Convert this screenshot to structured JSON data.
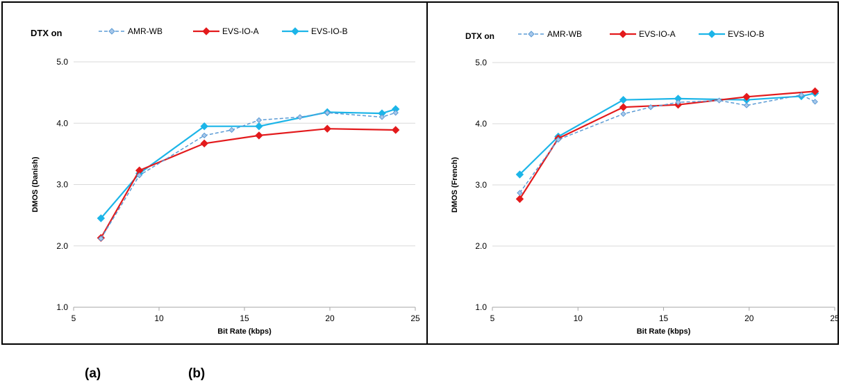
{
  "captions": {
    "a": "(a)",
    "b": "(b)"
  },
  "colors": {
    "amr_wb": "#5b9bd5",
    "evs_io_a": "#e31a1c",
    "evs_io_b": "#1cb5e8",
    "grid": "#d9d9d9",
    "axis": "#a6a6a6"
  },
  "chart_data": [
    {
      "type": "line",
      "title": "DTX on",
      "xlabel": "Bit Rate (kbps)",
      "ylabel": "DMOS (Danish)",
      "xlim": [
        5,
        25
      ],
      "ylim": [
        1.0,
        5.0
      ],
      "xticks": [
        "5",
        "10",
        "15",
        "20",
        "25"
      ],
      "yticks": [
        "1.0",
        "2.0",
        "3.0",
        "4.0",
        "5.0"
      ],
      "grid": "horizontal",
      "legend": "top",
      "series": [
        {
          "name": "AMR-WB",
          "style": "dashed",
          "x": [
            6.6,
            8.85,
            12.65,
            14.25,
            15.85,
            18.25,
            19.85,
            23.05,
            23.85
          ],
          "y": [
            2.12,
            3.15,
            3.8,
            3.89,
            4.05,
            4.1,
            4.17,
            4.1,
            4.17
          ]
        },
        {
          "name": "EVS-IO-A",
          "style": "solid",
          "x": [
            6.6,
            8.85,
            12.65,
            15.85,
            19.85,
            23.85
          ],
          "y": [
            2.13,
            3.23,
            3.67,
            3.8,
            3.91,
            3.89
          ]
        },
        {
          "name": "EVS-IO-B",
          "style": "solid",
          "x": [
            6.6,
            8.85,
            12.65,
            15.85,
            19.85,
            23.05,
            23.85
          ],
          "y": [
            2.45,
            3.18,
            3.95,
            3.95,
            4.18,
            4.16,
            4.23
          ]
        }
      ]
    },
    {
      "type": "line",
      "title": "DTX on",
      "xlabel": "Bit Rate (kbps)",
      "ylabel": "DMOS (French)",
      "xlim": [
        5,
        25
      ],
      "ylim": [
        1.0,
        5.0
      ],
      "xticks": [
        "5",
        "10",
        "15",
        "20",
        "25"
      ],
      "yticks": [
        "1.0",
        "2.0",
        "3.0",
        "4.0",
        "5.0"
      ],
      "grid": "horizontal",
      "legend": "top",
      "series": [
        {
          "name": "AMR-WB",
          "style": "dashed",
          "x": [
            6.6,
            8.85,
            12.65,
            14.25,
            15.85,
            18.25,
            19.85,
            23.05,
            23.85
          ],
          "y": [
            2.87,
            3.74,
            4.16,
            4.27,
            4.35,
            4.38,
            4.3,
            4.47,
            4.36
          ]
        },
        {
          "name": "EVS-IO-A",
          "style": "solid",
          "x": [
            6.6,
            8.85,
            12.65,
            15.85,
            19.85,
            23.85
          ],
          "y": [
            2.77,
            3.76,
            4.27,
            4.31,
            4.44,
            4.53
          ]
        },
        {
          "name": "EVS-IO-B",
          "style": "solid",
          "x": [
            6.6,
            8.85,
            12.65,
            15.85,
            19.85,
            23.05,
            23.85
          ],
          "y": [
            3.17,
            3.79,
            4.39,
            4.41,
            4.39,
            4.45,
            4.5
          ]
        }
      ]
    }
  ]
}
